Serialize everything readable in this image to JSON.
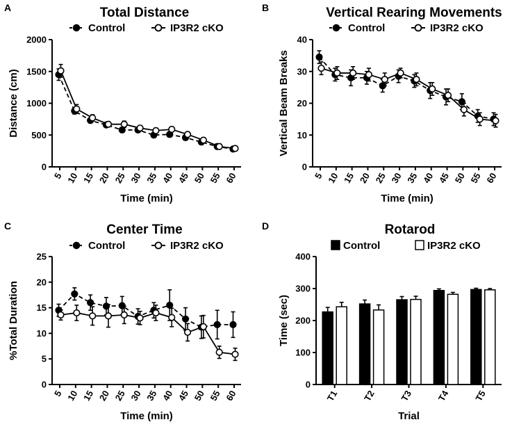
{
  "colors": {
    "control": "#000000",
    "ko": "#ffffff",
    "stroke": "#000000"
  },
  "chart_data": [
    {
      "panel": "A",
      "type": "line",
      "title": "Total Distance",
      "xlabel": "Time (min)",
      "ylabel": "Distance (cm)",
      "x": [
        5,
        10,
        15,
        20,
        25,
        30,
        35,
        40,
        45,
        50,
        55,
        60
      ],
      "ylim": [
        0,
        2000
      ],
      "yticks": [
        0,
        500,
        1000,
        1500,
        2000
      ],
      "legend": [
        "Control",
        "IP3R2 cKO"
      ],
      "series": [
        {
          "name": "Control",
          "values": [
            1450,
            880,
            730,
            660,
            580,
            580,
            500,
            510,
            460,
            390,
            320,
            280
          ],
          "errors": [
            90,
            50,
            40,
            30,
            40,
            40,
            40,
            40,
            40,
            40,
            40,
            30
          ]
        },
        {
          "name": "IP3R2 cKO",
          "values": [
            1510,
            910,
            770,
            670,
            670,
            610,
            570,
            590,
            510,
            420,
            320,
            290
          ],
          "errors": [
            100,
            70,
            50,
            40,
            50,
            40,
            40,
            40,
            40,
            40,
            40,
            40
          ]
        }
      ]
    },
    {
      "panel": "B",
      "type": "line",
      "title": "Vertical Rearing Movements",
      "xlabel": "Time (min)",
      "ylabel": "Vertical Beam Breaks",
      "x": [
        5,
        10,
        15,
        20,
        25,
        30,
        35,
        40,
        45,
        50,
        55,
        60
      ],
      "ylim": [
        0,
        40
      ],
      "yticks": [
        0,
        10,
        20,
        30,
        40
      ],
      "legend": [
        "Control",
        "IP3R2 cKO"
      ],
      "series": [
        {
          "name": "Control",
          "values": [
            34.5,
            29,
            28,
            28,
            25.5,
            28.5,
            27,
            24,
            22,
            20.5,
            16,
            15
          ],
          "errors": [
            2,
            2,
            2.5,
            2,
            2,
            2,
            2,
            2.5,
            2.5,
            2.5,
            2,
            2
          ]
        },
        {
          "name": "IP3R2 cKO",
          "values": [
            31,
            29.5,
            29.5,
            29,
            27.5,
            29.5,
            27.5,
            24.5,
            22.5,
            18,
            15,
            14.5
          ],
          "errors": [
            2,
            2,
            2,
            2,
            2,
            1.5,
            2,
            2,
            2,
            2,
            2,
            2
          ]
        }
      ]
    },
    {
      "panel": "C",
      "type": "line",
      "title": "Center Time",
      "xlabel": "Time (min)",
      "ylabel": "%Total Duration",
      "x": [
        5,
        10,
        15,
        20,
        25,
        30,
        35,
        40,
        45,
        50,
        55,
        60
      ],
      "ylim": [
        0,
        25
      ],
      "yticks": [
        0,
        5,
        10,
        15,
        20,
        25
      ],
      "legend": [
        "Control",
        "IP3R2 cKO"
      ],
      "series": [
        {
          "name": "Control",
          "values": [
            14.5,
            17.7,
            16,
            15.3,
            15.4,
            13.3,
            14.5,
            15.5,
            12.8,
            11.2,
            11.7,
            11.7
          ],
          "errors": [
            1.2,
            1.2,
            1.5,
            1.7,
            1.8,
            1.5,
            1.5,
            3,
            2.2,
            2.2,
            2.8,
            2.5
          ]
        },
        {
          "name": "IP3R2 cKO",
          "values": [
            13.6,
            14,
            13.4,
            13.4,
            13.6,
            13,
            14,
            13.1,
            10.2,
            11.3,
            6.3,
            5.9
          ],
          "errors": [
            1,
            1.5,
            1.8,
            2.2,
            1.7,
            1.3,
            1.5,
            1.8,
            1.7,
            2.2,
            1.2,
            1.2
          ]
        }
      ]
    },
    {
      "panel": "D",
      "type": "bar",
      "title": "Rotarod",
      "xlabel": "Trial",
      "ylabel": "Time (sec)",
      "categories": [
        "T1",
        "T2",
        "T3",
        "T4",
        "T5"
      ],
      "ylim": [
        0,
        400
      ],
      "yticks": [
        0,
        100,
        200,
        300,
        400
      ],
      "legend": [
        "Control",
        "IP3R2 cKO"
      ],
      "series": [
        {
          "name": "Control",
          "values": [
            227,
            252,
            265,
            294,
            297
          ],
          "errors": [
            14,
            12,
            10,
            5,
            4
          ]
        },
        {
          "name": "IP3R2 cKO",
          "values": [
            243,
            233,
            266,
            282,
            296
          ],
          "errors": [
            14,
            16,
            10,
            6,
            4
          ]
        }
      ]
    }
  ]
}
